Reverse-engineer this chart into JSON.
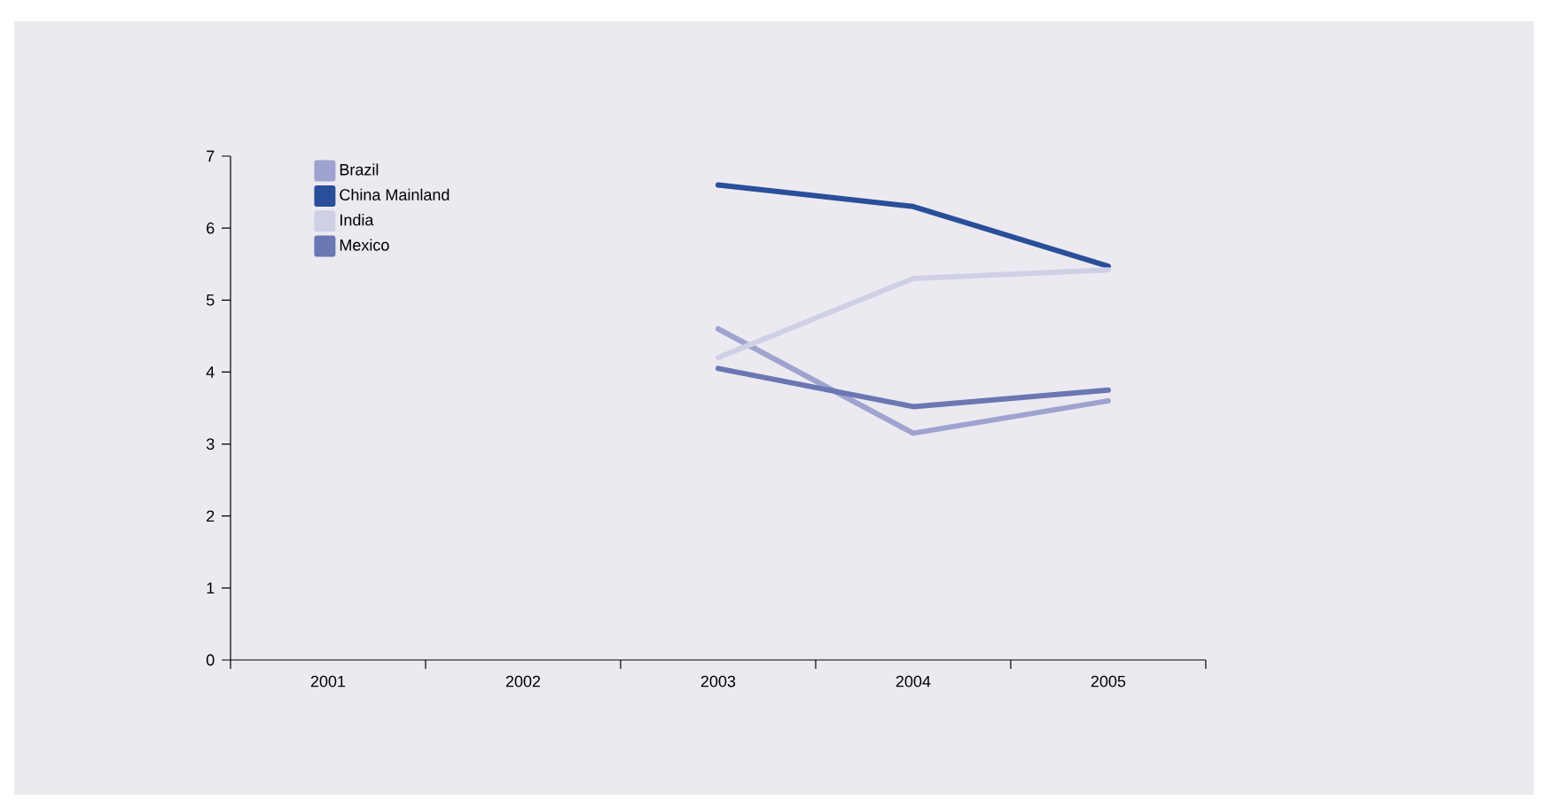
{
  "chart_data": {
    "type": "line",
    "categories": [
      "2001",
      "2002",
      "2003",
      "2004",
      "2005"
    ],
    "series": [
      {
        "name": "Brazil",
        "color": "#9fa3cf",
        "values": [
          null,
          null,
          4.6,
          3.15,
          3.6
        ]
      },
      {
        "name": "China Mainland",
        "color": "#2a4f9a",
        "values": [
          null,
          null,
          6.6,
          6.3,
          5.47
        ]
      },
      {
        "name": "India",
        "color": "#cfd0e6",
        "values": [
          null,
          null,
          4.2,
          5.3,
          5.42
        ]
      },
      {
        "name": "Mexico",
        "color": "#6a77b3",
        "values": [
          null,
          null,
          4.05,
          3.52,
          3.75
        ]
      }
    ],
    "ylim": [
      0,
      7
    ],
    "yticks": [
      0,
      1,
      2,
      3,
      4,
      5,
      6,
      7
    ],
    "legend": "top left",
    "grid": false,
    "marker": "none",
    "line_style": "solid"
  }
}
